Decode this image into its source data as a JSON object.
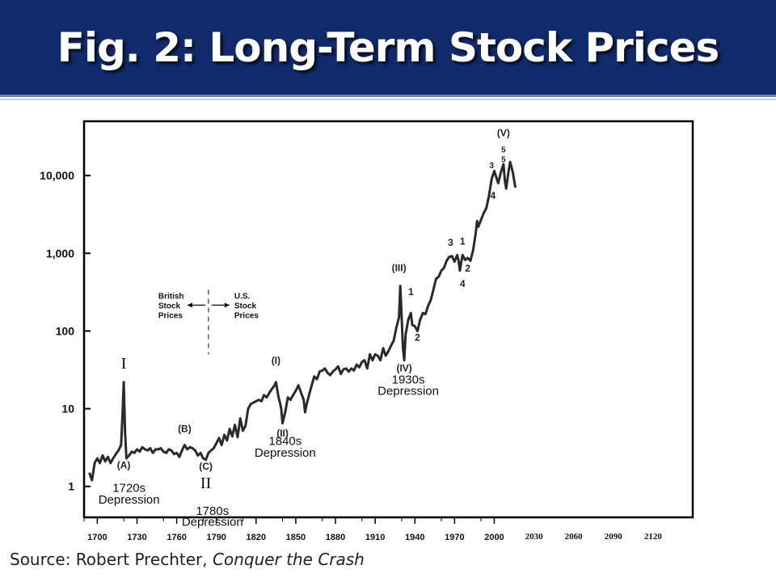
{
  "banner": {
    "title": "Fig. 2: Long-Term Stock Prices",
    "color": "#102a6b"
  },
  "source": {
    "prefix": "Source: Robert Prechter, ",
    "book": "Conquer the Crash"
  },
  "chart_data": {
    "type": "line",
    "title": "",
    "xlabel": "",
    "ylabel": "",
    "y_scale": "log",
    "xlim": [
      1690,
      2150
    ],
    "ylim": [
      0.4,
      50000
    ],
    "x_ticks": [
      {
        "value": 1700,
        "label": "1700"
      },
      {
        "value": 1730,
        "label": "1730"
      },
      {
        "value": 1760,
        "label": "1760"
      },
      {
        "value": 1790,
        "label": "1790"
      },
      {
        "value": 1820,
        "label": "1820"
      },
      {
        "value": 1850,
        "label": "1850"
      },
      {
        "value": 1880,
        "label": "1880"
      },
      {
        "value": 1910,
        "label": "1910"
      },
      {
        "value": 1940,
        "label": "1940"
      },
      {
        "value": 1970,
        "label": "1970"
      },
      {
        "value": 2000,
        "label": "2000"
      },
      {
        "value": 2030,
        "label": "2030"
      },
      {
        "value": 2060,
        "label": "2060"
      },
      {
        "value": 2090,
        "label": "2090"
      },
      {
        "value": 2120,
        "label": "2120"
      }
    ],
    "y_ticks": [
      {
        "value": 1,
        "label": "1"
      },
      {
        "value": 10,
        "label": "10"
      },
      {
        "value": 100,
        "label": "100"
      },
      {
        "value": 1000,
        "label": "1,000"
      },
      {
        "value": 10000,
        "label": "10,000"
      }
    ],
    "grid": false,
    "line_color": "#2a2a2a",
    "series": [
      {
        "points": [
          [
            1694,
            1.5
          ],
          [
            1696,
            1.2
          ],
          [
            1698,
            2.0
          ],
          [
            1700,
            2.3
          ],
          [
            1702,
            2.0
          ],
          [
            1704,
            2.5
          ],
          [
            1706,
            2.1
          ],
          [
            1708,
            2.4
          ],
          [
            1710,
            2.0
          ],
          [
            1712,
            2.3
          ],
          [
            1714,
            2.6
          ],
          [
            1716,
            2.9
          ],
          [
            1718,
            3.4
          ],
          [
            1719,
            8
          ],
          [
            1720,
            22
          ],
          [
            1721,
            5
          ],
          [
            1722,
            2.3
          ],
          [
            1724,
            2.5
          ],
          [
            1726,
            2.8
          ],
          [
            1728,
            2.7
          ],
          [
            1730,
            3.0
          ],
          [
            1732,
            2.8
          ],
          [
            1734,
            3.2
          ],
          [
            1736,
            3.0
          ],
          [
            1738,
            2.9
          ],
          [
            1740,
            3.1
          ],
          [
            1742,
            2.7
          ],
          [
            1744,
            3.0
          ],
          [
            1746,
            3.0
          ],
          [
            1748,
            3.1
          ],
          [
            1750,
            2.8
          ],
          [
            1752,
            2.7
          ],
          [
            1754,
            3.0
          ],
          [
            1756,
            2.9
          ],
          [
            1758,
            2.6
          ],
          [
            1760,
            2.7
          ],
          [
            1762,
            2.4
          ],
          [
            1764,
            2.9
          ],
          [
            1766,
            3.4
          ],
          [
            1768,
            3.0
          ],
          [
            1770,
            3.2
          ],
          [
            1772,
            3.1
          ],
          [
            1774,
            2.9
          ],
          [
            1776,
            2.5
          ],
          [
            1778,
            2.7
          ],
          [
            1780,
            2.3
          ],
          [
            1782,
            2.2
          ],
          [
            1784,
            2.7
          ],
          [
            1786,
            2.9
          ],
          [
            1788,
            3.1
          ],
          [
            1790,
            3.6
          ],
          [
            1792,
            4.2
          ],
          [
            1794,
            3.4
          ],
          [
            1796,
            4.6
          ],
          [
            1798,
            3.9
          ],
          [
            1800,
            5.5
          ],
          [
            1802,
            4.4
          ],
          [
            1804,
            6.2
          ],
          [
            1806,
            4.3
          ],
          [
            1808,
            7.5
          ],
          [
            1810,
            5.2
          ],
          [
            1812,
            6.0
          ],
          [
            1814,
            10
          ],
          [
            1816,
            11.5
          ],
          [
            1818,
            12
          ],
          [
            1820,
            12.5
          ],
          [
            1822,
            13
          ],
          [
            1824,
            12.5
          ],
          [
            1826,
            15
          ],
          [
            1828,
            14
          ],
          [
            1830,
            16
          ],
          [
            1832,
            18
          ],
          [
            1834,
            20
          ],
          [
            1835,
            22
          ],
          [
            1837,
            14
          ],
          [
            1838,
            12
          ],
          [
            1839,
            10
          ],
          [
            1840,
            6.5
          ],
          [
            1842,
            9
          ],
          [
            1844,
            14
          ],
          [
            1846,
            13
          ],
          [
            1848,
            15
          ],
          [
            1850,
            17
          ],
          [
            1852,
            20
          ],
          [
            1854,
            16
          ],
          [
            1856,
            13
          ],
          [
            1857,
            9
          ],
          [
            1858,
            11
          ],
          [
            1860,
            15
          ],
          [
            1862,
            20
          ],
          [
            1864,
            26
          ],
          [
            1866,
            24
          ],
          [
            1868,
            30
          ],
          [
            1870,
            31
          ],
          [
            1872,
            33
          ],
          [
            1874,
            29
          ],
          [
            1876,
            27
          ],
          [
            1878,
            30
          ],
          [
            1880,
            32
          ],
          [
            1882,
            35
          ],
          [
            1884,
            28
          ],
          [
            1886,
            32
          ],
          [
            1888,
            33
          ],
          [
            1890,
            30
          ],
          [
            1892,
            33
          ],
          [
            1894,
            31
          ],
          [
            1896,
            37
          ],
          [
            1898,
            34
          ],
          [
            1900,
            40
          ],
          [
            1902,
            42
          ],
          [
            1904,
            33
          ],
          [
            1906,
            50
          ],
          [
            1908,
            42
          ],
          [
            1910,
            50
          ],
          [
            1912,
            48
          ],
          [
            1914,
            42
          ],
          [
            1916,
            60
          ],
          [
            1918,
            48
          ],
          [
            1920,
            55
          ],
          [
            1922,
            65
          ],
          [
            1924,
            75
          ],
          [
            1926,
            110
          ],
          [
            1928,
            150
          ],
          [
            1929,
            380
          ],
          [
            1930,
            150
          ],
          [
            1931,
            60
          ],
          [
            1932,
            42
          ],
          [
            1933,
            90
          ],
          [
            1935,
            140
          ],
          [
            1937,
            170
          ],
          [
            1938,
            120
          ],
          [
            1940,
            115
          ],
          [
            1942,
            100
          ],
          [
            1944,
            140
          ],
          [
            1946,
            170
          ],
          [
            1948,
            165
          ],
          [
            1950,
            210
          ],
          [
            1952,
            250
          ],
          [
            1954,
            340
          ],
          [
            1956,
            470
          ],
          [
            1958,
            500
          ],
          [
            1960,
            600
          ],
          [
            1962,
            650
          ],
          [
            1964,
            800
          ],
          [
            1966,
            900
          ],
          [
            1968,
            920
          ],
          [
            1970,
            780
          ],
          [
            1972,
            950
          ],
          [
            1973,
            800
          ],
          [
            1974,
            600
          ],
          [
            1976,
            950
          ],
          [
            1978,
            820
          ],
          [
            1980,
            870
          ],
          [
            1982,
            800
          ],
          [
            1984,
            1100
          ],
          [
            1986,
            1800
          ],
          [
            1987,
            2600
          ],
          [
            1988,
            2200
          ],
          [
            1990,
            2700
          ],
          [
            1992,
            3300
          ],
          [
            1994,
            3800
          ],
          [
            1996,
            5500
          ],
          [
            1998,
            9000
          ],
          [
            2000,
            11500
          ],
          [
            2002,
            9000
          ],
          [
            2003,
            8000
          ],
          [
            2005,
            11000
          ],
          [
            2007,
            14000
          ],
          [
            2008,
            8500
          ],
          [
            2009,
            6800
          ],
          [
            2011,
            12000
          ],
          [
            2012,
            15000
          ],
          [
            2014,
            11000
          ],
          [
            2016,
            7000
          ]
        ]
      }
    ],
    "labels": [
      {
        "text": "(A)",
        "x": 1720,
        "y": 1.7,
        "bold": true
      },
      {
        "text": "(B)",
        "x": 1766,
        "y": 5.0,
        "bold": true
      },
      {
        "text": "(C)",
        "x": 1782,
        "y": 1.65,
        "bold": true
      },
      {
        "text": "(I)",
        "x": 1835,
        "y": 38,
        "bold": true
      },
      {
        "text": "(II)",
        "x": 1840,
        "y": 4.4,
        "bold": true
      },
      {
        "text": "(III)",
        "x": 1928,
        "y": 590,
        "bold": true
      },
      {
        "text": "(IV)",
        "x": 1932,
        "y": 30,
        "bold": true
      },
      {
        "text": "(V)",
        "x": 2007,
        "y": 32000,
        "bold": true
      },
      {
        "text": "1",
        "x": 1937,
        "y": 290,
        "bold": true
      },
      {
        "text": "2",
        "x": 1942,
        "y": 75,
        "bold": true
      },
      {
        "text": "3",
        "x": 1967,
        "y": 1250,
        "bold": true
      },
      {
        "text": "1",
        "x": 1976,
        "y": 1300,
        "bold": true
      },
      {
        "text": "2",
        "x": 1980,
        "y": 580,
        "bold": true
      },
      {
        "text": "4",
        "x": 1976,
        "y": 370,
        "bold": true
      },
      {
        "text": "3",
        "x": 1998,
        "y": 12500,
        "bold": true
      },
      {
        "text": "4",
        "x": 1999,
        "y": 5000,
        "bold": true
      },
      {
        "text": "5",
        "x": 2007,
        "y": 20000,
        "bold": true
      },
      {
        "text": "5",
        "x": 2007,
        "y": 15000,
        "bold": true
      }
    ],
    "annotations": [
      {
        "text": "1720s",
        "x": 1724,
        "y": 0.85
      },
      {
        "text": "Depression",
        "x": 1724,
        "y": 0.6
      },
      {
        "text": "1780s",
        "x": 1787,
        "y": 0.43
      },
      {
        "text": "Depression",
        "x": 1787,
        "y": 0.31
      },
      {
        "text": "1840s",
        "x": 1842,
        "y": 3.4
      },
      {
        "text": "Depression",
        "x": 1842,
        "y": 2.4
      },
      {
        "text": "1930s",
        "x": 1935,
        "y": 21
      },
      {
        "text": "Depression",
        "x": 1935,
        "y": 15
      },
      {
        "text": "I",
        "x": 1720,
        "y": 33
      },
      {
        "text": "II",
        "x": 1782,
        "y": 0.95
      }
    ],
    "divider": {
      "x": 1784,
      "y_top": 300,
      "y_bottom": 50,
      "left_label": [
        "British",
        "Stock",
        "Prices"
      ],
      "right_label": [
        "U.S.",
        "Stock",
        "Prices"
      ],
      "y_label": 100
    }
  }
}
